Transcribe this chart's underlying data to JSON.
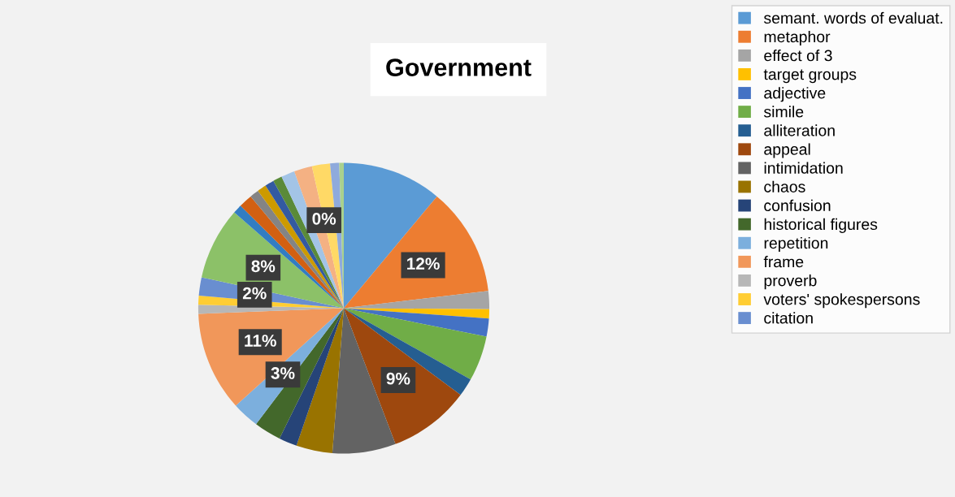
{
  "chart_data": {
    "type": "pie",
    "title": "Government",
    "categories": [
      "semant. words of evaluat.",
      "metaphor",
      "effect of 3",
      "target groups",
      "adjective",
      "simile",
      "alliteration",
      "appeal",
      "intimidation",
      "chaos",
      "confusion",
      "historical figures",
      "repetition",
      "frame",
      "proverb",
      "voters' spokespersons",
      "citation",
      null,
      null,
      null,
      null,
      null,
      null,
      null,
      null,
      null,
      null,
      null,
      null,
      null
    ],
    "values": [
      11,
      12,
      2,
      1,
      2,
      5,
      2,
      9,
      7,
      4,
      2,
      3,
      3,
      11,
      1,
      1,
      2,
      8,
      1,
      1.5,
      1,
      1,
      1,
      1,
      1.5,
      2,
      0,
      2,
      1,
      0.5
    ],
    "colors": [
      "#5b9bd5",
      "#ed7d31",
      "#a5a5a5",
      "#ffc000",
      "#4472c4",
      "#70ad47",
      "#255e91",
      "#9e480e",
      "#636363",
      "#997300",
      "#264478",
      "#43682b",
      "#7cafdd",
      "#f1975a",
      "#b7b7b7",
      "#ffcd33",
      "#698ed0",
      "#8cc168",
      "#327dc2",
      "#d26012",
      "#848484",
      "#cc9a00",
      "#335aa1",
      "#5a8a39",
      "#a3c4e6",
      "#f4b183",
      "#c9c9c9",
      "#ffd966",
      "#8faadc",
      "#a9d18e"
    ],
    "value_labels": [
      null,
      "12%",
      null,
      null,
      null,
      null,
      null,
      "9%",
      null,
      null,
      null,
      null,
      "3%",
      "11%",
      null,
      null,
      "2%",
      "8%",
      null,
      null,
      null,
      null,
      null,
      null,
      null,
      null,
      "0%",
      null,
      null,
      null
    ],
    "legend": "right"
  }
}
